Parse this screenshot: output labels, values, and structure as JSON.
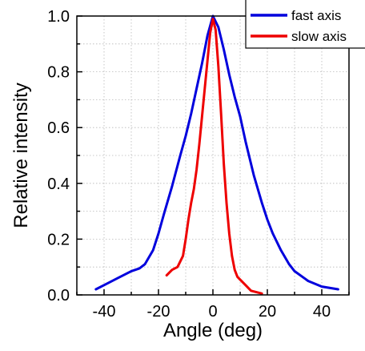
{
  "chart_data": {
    "type": "line",
    "title": "",
    "xlabel": "Angle (deg)",
    "ylabel": "Relative intensity",
    "xlim": [
      -50,
      50
    ],
    "ylim": [
      0,
      1
    ],
    "xticks": [
      -40,
      -20,
      0,
      20,
      40
    ],
    "yticks": [
      0.0,
      0.2,
      0.4,
      0.6,
      0.8,
      1.0
    ],
    "xtick_labels": [
      "-40",
      "-20",
      "0",
      "20",
      "40"
    ],
    "ytick_labels": [
      "0.0",
      "0.2",
      "0.4",
      "0.6",
      "0.8",
      "1.0"
    ],
    "grid": true,
    "legend_position": "top-right",
    "series": [
      {
        "name": "fast axis",
        "color": "#0000dd",
        "x": [
          -43,
          -40,
          -35,
          -30,
          -27,
          -25,
          -22,
          -20,
          -18,
          -15,
          -12,
          -10,
          -8,
          -6,
          -4,
          -2,
          0,
          2,
          4,
          6,
          8,
          10,
          12,
          15,
          18,
          20,
          22,
          25,
          28,
          30,
          35,
          40,
          46
        ],
        "y": [
          0.02,
          0.035,
          0.06,
          0.085,
          0.095,
          0.11,
          0.16,
          0.22,
          0.29,
          0.39,
          0.5,
          0.57,
          0.65,
          0.74,
          0.83,
          0.93,
          1.0,
          0.96,
          0.88,
          0.79,
          0.71,
          0.64,
          0.55,
          0.43,
          0.33,
          0.27,
          0.22,
          0.16,
          0.11,
          0.085,
          0.05,
          0.03,
          0.02
        ]
      },
      {
        "name": "slow axis",
        "color": "#ee0000",
        "x": [
          -17,
          -15,
          -13,
          -11,
          -10,
          -9,
          -8,
          -7,
          -6,
          -5,
          -4,
          -3,
          -2,
          -1,
          0,
          1,
          2,
          3,
          4,
          5,
          6,
          7,
          8,
          9,
          10,
          12,
          14,
          18
        ],
        "y": [
          0.07,
          0.09,
          0.1,
          0.14,
          0.2,
          0.27,
          0.33,
          0.38,
          0.45,
          0.54,
          0.64,
          0.74,
          0.84,
          0.94,
          0.99,
          0.95,
          0.82,
          0.65,
          0.47,
          0.33,
          0.22,
          0.14,
          0.09,
          0.065,
          0.055,
          0.035,
          0.015,
          0.005
        ]
      }
    ]
  }
}
